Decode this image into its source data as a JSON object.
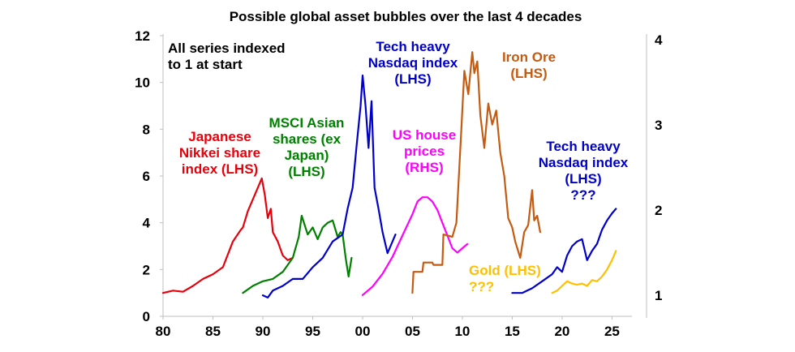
{
  "chart_data": {
    "type": "line",
    "title": "Possible global asset bubbles over the last 4 decades",
    "xlim": [
      80,
      27
    ],
    "left_axis": {
      "ylim": [
        0,
        12
      ],
      "ticks": [
        0,
        2,
        4,
        6,
        8,
        10,
        12
      ]
    },
    "right_axis": {
      "ylim": [
        0.75,
        4.05
      ],
      "ticks": [
        1,
        2,
        3,
        4
      ]
    },
    "x_ticks": [
      80,
      85,
      90,
      95,
      0,
      5,
      10,
      15,
      20,
      25
    ],
    "x_tick_labels": [
      "80",
      "85",
      "90",
      "95",
      "00",
      "05",
      "10",
      "15",
      "20",
      "25"
    ],
    "x_tick_years": [
      1980,
      1985,
      1990,
      1995,
      2000,
      2005,
      2010,
      2015,
      2020,
      2025
    ],
    "grid": false,
    "series": [
      {
        "color": "#e8000b",
        "axis": "left",
        "x": [
          1980,
          1981,
          1982,
          1983,
          1984,
          1985,
          1986,
          1987,
          1987.8,
          1988,
          1988.5,
          1989,
          1989.4,
          1989.9,
          1990.2,
          1990.5,
          1990.8,
          1991,
          1991.5,
          1992,
          1992.5,
          1993
        ],
        "y": [
          1.0,
          1.1,
          1.05,
          1.3,
          1.6,
          1.8,
          2.1,
          3.2,
          3.7,
          3.8,
          4.5,
          5.0,
          5.4,
          5.9,
          5.2,
          4.2,
          4.6,
          3.6,
          3.2,
          2.6,
          2.4,
          2.5
        ]
      },
      {
        "color": "#008000",
        "axis": "left",
        "x": [
          1988,
          1989,
          1990,
          1991,
          1992,
          1993,
          1993.6,
          1993.9,
          1994.5,
          1995,
          1995.5,
          1996,
          1996.5,
          1997,
          1997.5,
          1997.8,
          1998,
          1998.3,
          1998.6,
          1998.9
        ],
        "y": [
          1.0,
          1.3,
          1.5,
          1.6,
          1.9,
          2.5,
          3.4,
          4.3,
          3.5,
          3.8,
          3.3,
          3.8,
          4.0,
          4.1,
          3.4,
          3.6,
          3.5,
          2.5,
          1.7,
          2.5
        ]
      },
      {
        "color": "#0000cd",
        "axis": "left",
        "x": [
          1990,
          1990.5,
          1991,
          1992,
          1993,
          1994,
          1995,
          1996,
          1997,
          1998,
          1998.5,
          1999,
          1999.4,
          1999.8,
          2000,
          2000.3,
          2000.6,
          2000.9,
          2001.2,
          2001.6,
          2002,
          2002.5,
          2002.8,
          2003.3
        ],
        "y": [
          0.9,
          0.8,
          1.1,
          1.3,
          1.6,
          1.6,
          2.1,
          2.5,
          3.2,
          3.5,
          4.6,
          5.5,
          7.3,
          9.0,
          10.3,
          9.0,
          7.2,
          9.2,
          5.5,
          4.6,
          3.6,
          2.7,
          3.0,
          3.5
        ]
      },
      {
        "color": "#ff00ff",
        "axis": "right",
        "x": [
          2000,
          2001,
          2002,
          2003,
          2004,
          2005,
          2005.5,
          2006,
          2006.5,
          2007,
          2007.5,
          2008,
          2008.5,
          2009,
          2009.5,
          2010,
          2010.5
        ],
        "y": [
          1.0,
          1.1,
          1.25,
          1.45,
          1.7,
          1.95,
          2.1,
          2.15,
          2.15,
          2.1,
          2.0,
          1.85,
          1.7,
          1.55,
          1.5,
          1.55,
          1.6
        ]
      },
      {
        "color": "#c55a11",
        "axis": "left",
        "x": [
          2005,
          2005.1,
          2006,
          2006.1,
          2007,
          2007.1,
          2008,
          2008.1,
          2009,
          2009.4,
          2009.9,
          2010.2,
          2010.6,
          2011,
          2011.2,
          2011.5,
          2011.8,
          2012.2,
          2012.6,
          2013,
          2013.4,
          2013.8,
          2014.2,
          2014.6,
          2015,
          2015.3,
          2015.8,
          2016.2,
          2016.6,
          2017,
          2017.2,
          2017.5,
          2017.8
        ],
        "y": [
          1.0,
          1.9,
          1.9,
          2.3,
          2.3,
          2.2,
          2.2,
          3.5,
          3.4,
          4.0,
          8.0,
          10.5,
          9.5,
          11.3,
          10.4,
          10.9,
          8.6,
          7.2,
          9.1,
          8.2,
          8.8,
          7.0,
          6.0,
          4.2,
          3.8,
          3.2,
          2.5,
          3.6,
          3.9,
          5.4,
          4.1,
          4.3,
          3.6
        ]
      },
      {
        "color": "#0000cd",
        "axis": "left",
        "x": [
          2015,
          2016,
          2016.5,
          2017,
          2018,
          2019,
          2019.5,
          2020,
          2020.5,
          2021,
          2021.5,
          2022,
          2022.5,
          2023,
          2023.5,
          2024,
          2024.5,
          2025,
          2025.4
        ],
        "y": [
          1.0,
          1.0,
          1.1,
          1.2,
          1.5,
          1.8,
          2.1,
          1.9,
          2.6,
          3.0,
          3.2,
          3.3,
          2.4,
          2.8,
          3.1,
          3.7,
          4.1,
          4.4,
          4.6
        ]
      },
      {
        "color": "#ffc000",
        "axis": "left",
        "x": [
          2019,
          2019.5,
          2020,
          2020.5,
          2021,
          2021.5,
          2022,
          2022.5,
          2023,
          2023.5,
          2024,
          2024.5,
          2025,
          2025.4
        ],
        "y": [
          1.0,
          1.1,
          1.3,
          1.5,
          1.4,
          1.35,
          1.4,
          1.3,
          1.55,
          1.5,
          1.7,
          2.0,
          2.4,
          2.8
        ]
      }
    ],
    "annotations": [
      {
        "color": "#000000",
        "lines": [
          "All series indexed",
          "to 1 at start"
        ]
      },
      {
        "color": "#e8000b",
        "lines": [
          "Japanese",
          "Nikkei share",
          "index (LHS)"
        ]
      },
      {
        "color": "#008000",
        "lines": [
          "MSCI Asian",
          "shares (ex",
          "Japan)",
          "(LHS)"
        ]
      },
      {
        "color": "#0000cd",
        "lines": [
          "Tech heavy",
          "Nasdaq index",
          "(LHS)"
        ]
      },
      {
        "color": "#ff00ff",
        "lines": [
          "US house",
          "prices",
          "(RHS)"
        ]
      },
      {
        "color": "#c55a11",
        "lines": [
          "Iron Ore",
          "(LHS)"
        ]
      },
      {
        "color": "#0000cd",
        "lines": [
          "Tech heavy",
          "Nasdaq index",
          "(LHS)",
          "???"
        ]
      },
      {
        "color": "#ffc000",
        "lines": [
          "Gold (LHS)",
          "???"
        ]
      }
    ]
  }
}
